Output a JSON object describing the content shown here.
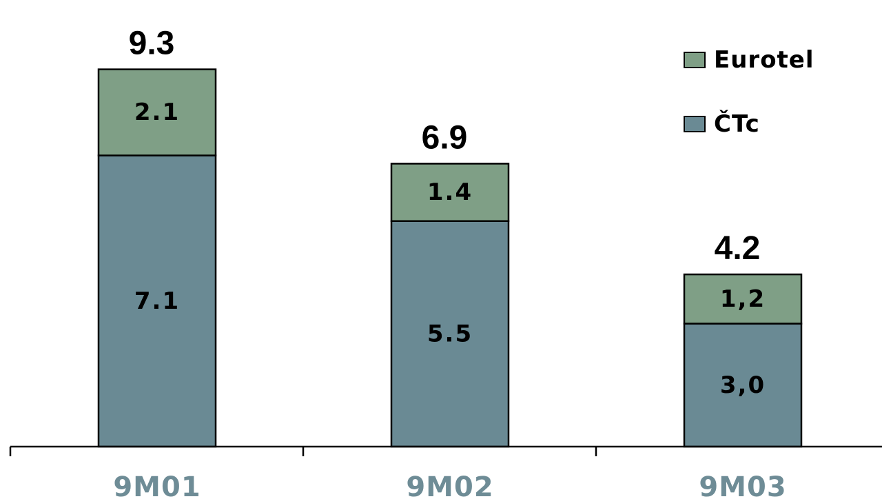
{
  "chart_data": {
    "type": "bar",
    "stacked": true,
    "categories": [
      "9M01",
      "9M02",
      "9M03"
    ],
    "series": [
      {
        "name": "ČTc",
        "values": [
          7.1,
          5.5,
          3.0
        ],
        "value_labels": [
          "7.1",
          "5.5",
          "3,0"
        ],
        "color": "#6a8a94"
      },
      {
        "name": "Eurotel",
        "values": [
          2.1,
          1.4,
          1.2
        ],
        "value_labels": [
          "2.1",
          "1.4",
          "1,2"
        ],
        "color": "#7f9f86"
      }
    ],
    "totals": [
      9.3,
      6.9,
      4.2
    ],
    "total_labels": [
      "9.3",
      "6.9",
      "4.2"
    ],
    "title": "",
    "xlabel": "",
    "ylabel": "",
    "ylim": [
      0,
      10
    ],
    "grid": false,
    "legend": {
      "placement": "top-right",
      "order": [
        "Eurotel",
        "ČTc"
      ]
    },
    "colors": {
      "category_text": "#6e8c96",
      "outline": "#000000"
    }
  }
}
